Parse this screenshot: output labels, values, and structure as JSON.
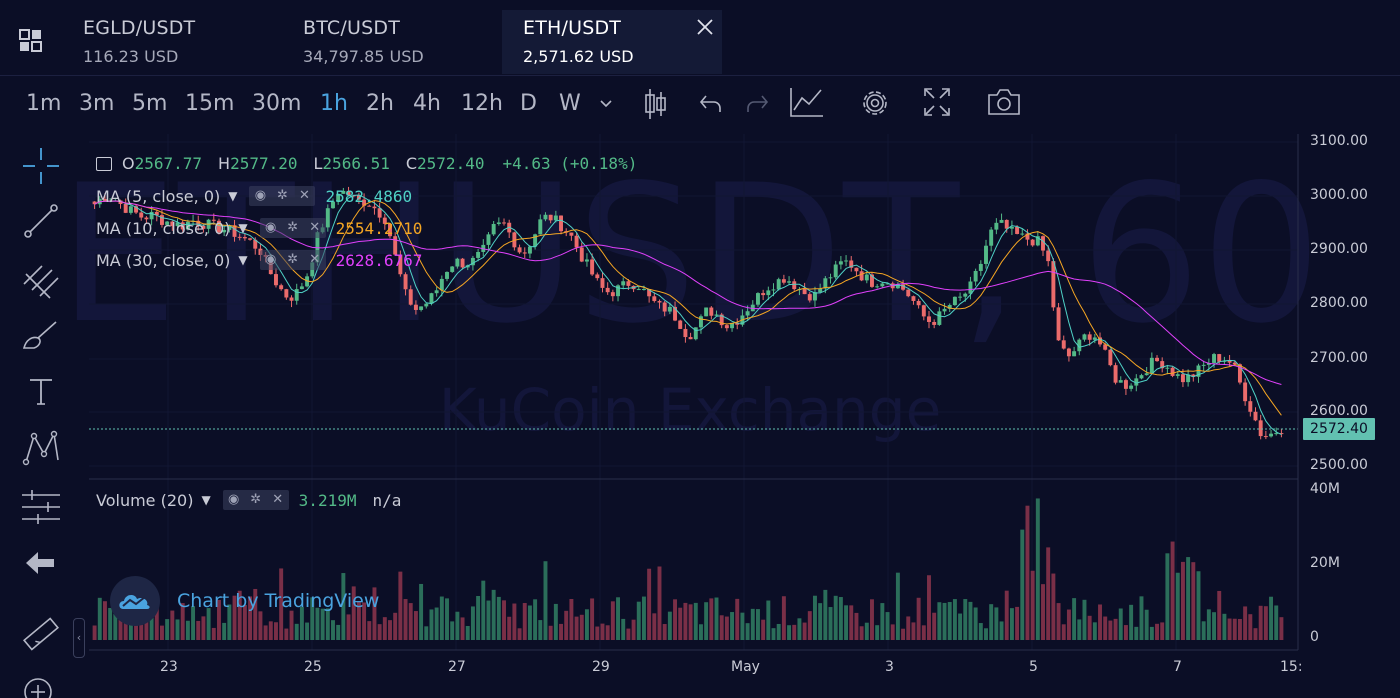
{
  "tabs": [
    {
      "pair": "EGLD/USDT",
      "price": "116.23 USD",
      "active": false
    },
    {
      "pair": "BTC/USDT",
      "price": "34,797.85 USD",
      "active": false
    },
    {
      "pair": "ETH/USDT",
      "price": "2,571.62 USD",
      "active": true
    }
  ],
  "toolbar": {
    "timeframes": [
      "1m",
      "3m",
      "5m",
      "15m",
      "30m",
      "1h",
      "2h",
      "4h",
      "12h",
      "D",
      "W"
    ],
    "active_timeframe": "1h",
    "icons": [
      "chevron-down-icon",
      "candlestick-icon",
      "undo-icon",
      "redo-icon",
      "indicators-icon",
      "gear-icon",
      "fullscreen-icon",
      "camera-icon"
    ]
  },
  "side_tools": [
    "crosshair-icon",
    "trendline-icon",
    "pitchfork-icon",
    "brush-icon",
    "text-icon",
    "pattern-icon",
    "measure-icon",
    "back-arrow-icon",
    "ruler-icon",
    "zoom-in-icon"
  ],
  "ohlc": {
    "o_label": "O",
    "o": "2567.77",
    "h_label": "H",
    "h": "2577.20",
    "l_label": "L",
    "l": "2566.51",
    "c_label": "C",
    "c": "2572.40",
    "change": "+4.63 (+0.18%)"
  },
  "indicators": [
    {
      "name": "MA (5, close, 0)",
      "value": "2582.4860",
      "color": "#4fd1c5"
    },
    {
      "name": "MA (10, close, 0)",
      "value": "2554.2710",
      "color": "#f5a623"
    },
    {
      "name": "MA (30, close, 0)",
      "value": "2628.6767",
      "color": "#e040fb"
    }
  ],
  "volume": {
    "name": "Volume (20)",
    "value": "3.219M",
    "extra": "n/a"
  },
  "watermark": {
    "symbol": "ETHUSDT, 60",
    "exchange": "KuCoin Exchange"
  },
  "last_price": "2572.40",
  "price_axis": [
    "3100.00",
    "3000.00",
    "2900.00",
    "2800.00",
    "2700.00",
    "2600.00",
    "2500.00"
  ],
  "volume_axis": [
    "40M",
    "20M",
    "0"
  ],
  "time_axis": [
    "23",
    "25",
    "27",
    "29",
    "May",
    "3",
    "5",
    "7",
    "15:"
  ],
  "badge": "Chart by TradingView",
  "colors": {
    "up": "#53b987",
    "down": "#eb6b6b",
    "background": "#0b0e26",
    "accent": "#4aa3df"
  },
  "chart_data": {
    "type": "candlestick",
    "x_label": "date",
    "y_range": [
      2500,
      3100
    ],
    "volume_range": [
      0,
      40000000
    ],
    "close": [
      2985,
      3000,
      2995,
      2980,
      2970,
      2960,
      2965,
      2955,
      2950,
      2945,
      2955,
      2950,
      2945,
      2940,
      2935,
      2925,
      2915,
      2900,
      2860,
      2830,
      2810,
      2825,
      2860,
      2930,
      2970,
      3010,
      3005,
      2990,
      2990,
      2975,
      2955,
      2880,
      2815,
      2790,
      2800,
      2820,
      2860,
      2880,
      2875,
      2880,
      2900,
      2940,
      2950,
      2920,
      2890,
      2920,
      2960,
      2960,
      2945,
      2925,
      2890,
      2860,
      2830,
      2820,
      2830,
      2840,
      2835,
      2810,
      2795,
      2790,
      2770,
      2740,
      2760,
      2790,
      2780,
      2760,
      2770,
      2790,
      2810,
      2830,
      2840,
      2850,
      2835,
      2820,
      2815,
      2840,
      2860,
      2880,
      2870,
      2850,
      2840,
      2845,
      2840,
      2830,
      2810,
      2780,
      2765,
      2780,
      2800,
      2810,
      2830,
      2870,
      2930,
      2950,
      2935,
      2925,
      2920,
      2915,
      2880,
      2730,
      2700,
      2720,
      2745,
      2740,
      2700,
      2660,
      2650,
      2660,
      2680,
      2695,
      2690,
      2670,
      2660,
      2670,
      2685,
      2700,
      2700,
      2690,
      2640,
      2600,
      2555,
      2560,
      2570
    ],
    "volume_note": "approximate hourly volumes, peaks near 38M on May 5"
  }
}
